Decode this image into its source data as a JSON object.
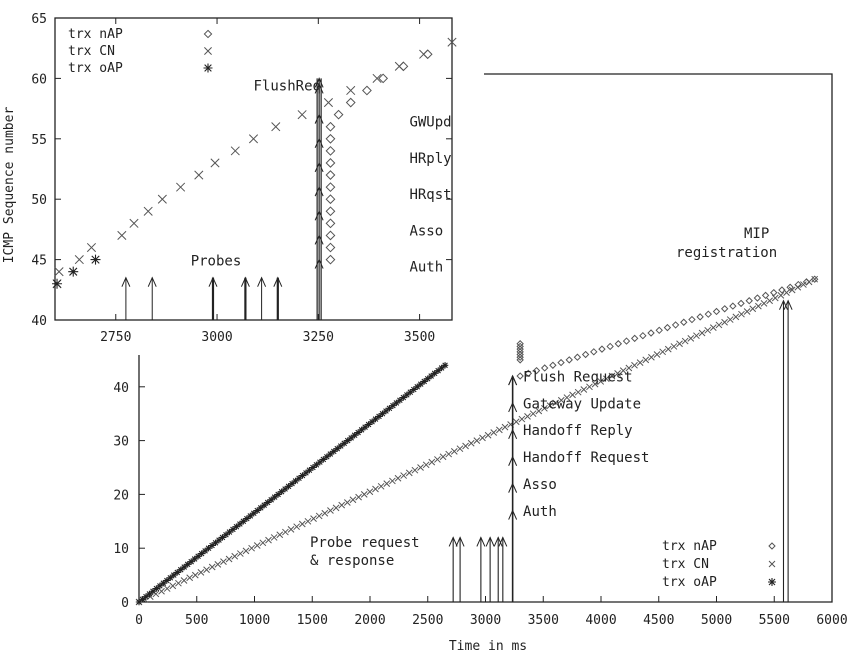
{
  "chart_data": [
    {
      "type": "scatter",
      "title": "",
      "xlabel": "Time in ms",
      "ylabel": "",
      "xlim": [
        0,
        6000
      ],
      "ylim": [
        0,
        47
      ],
      "xticks": [
        "0",
        "500",
        "1000",
        "1500",
        "2000",
        "2500",
        "3000",
        "3500",
        "4000",
        "4500",
        "5000",
        "5500",
        "6000"
      ],
      "yticks": [
        "0",
        "10",
        "20",
        "30",
        "40"
      ],
      "grid": false,
      "legend_position": "bottom-right",
      "legend": [
        {
          "label": "trx nAP",
          "marker": "◇"
        },
        {
          "label": "trx CN",
          "marker": "×"
        },
        {
          "label": "trx oAP",
          "marker": "✱"
        }
      ],
      "series": [
        {
          "name": "trx CN",
          "marker": "cross",
          "x_start": 0,
          "x_end": 5850,
          "y_start": 0,
          "y_end": 60
        },
        {
          "name": "trx oAP",
          "marker": "star",
          "x_start": 0,
          "x_end": 2650,
          "y_start": 0,
          "y_end": 44
        },
        {
          "name": "trx nAP",
          "marker": "diamond",
          "x_start": 3300,
          "x_end": 5850,
          "y_start": 42,
          "y_end": 60
        }
      ],
      "burst": {
        "x": 3300,
        "y_top": 48,
        "y_bottom": 45
      },
      "arrows": [
        {
          "x": 2720,
          "y0": 0,
          "y1": 12
        },
        {
          "x": 2780,
          "y0": 0,
          "y1": 12
        },
        {
          "x": 2960,
          "y0": 0,
          "y1": 12
        },
        {
          "x": 3040,
          "y0": 0,
          "y1": 12
        },
        {
          "x": 3110,
          "y0": 0,
          "y1": 12
        },
        {
          "x": 3150,
          "y0": 0,
          "y1": 12
        },
        {
          "x": 3235,
          "y0": 0,
          "y1": 42,
          "heads": [
            17,
            22,
            27,
            32,
            37,
            42
          ]
        },
        {
          "x": 5580,
          "y0": 0,
          "y1": 56
        },
        {
          "x": 5620,
          "y0": 0,
          "y1": 56
        }
      ],
      "annotations": [
        {
          "text": "Auth",
          "x": 3325,
          "y": 16
        },
        {
          "text": "Asso",
          "x": 3325,
          "y": 21
        },
        {
          "text": "Handoff Request",
          "x": 3325,
          "y": 26
        },
        {
          "text": "Handoff Reply",
          "x": 3325,
          "y": 31
        },
        {
          "text": "Gateway Update",
          "x": 3325,
          "y": 36
        },
        {
          "text": "Flush Request",
          "x": 3325,
          "y": 41
        },
        {
          "text": "Probe request",
          "x": 1500,
          "y": 9
        },
        {
          "text": "& response",
          "x": 1500,
          "y": 6
        },
        {
          "text": "MIP",
          "x": 5400,
          "y": 64
        },
        {
          "text": "registration",
          "x": 4760,
          "y": 61
        }
      ]
    },
    {
      "type": "scatter",
      "title": "",
      "xlabel": "",
      "ylabel": "ICMP Sequence number",
      "xlim": [
        2600,
        3580
      ],
      "ylim": [
        40,
        65
      ],
      "xticks": [
        "2750",
        "3000",
        "3250",
        "3500"
      ],
      "yticks": [
        "40",
        "45",
        "50",
        "55",
        "60",
        "65"
      ],
      "grid": false,
      "legend_position": "top-left",
      "legend": [
        {
          "label": "trx nAP",
          "marker": "◇"
        },
        {
          "label": "trx CN",
          "marker": "×"
        },
        {
          "label": "trx oAP",
          "marker": "✱"
        }
      ],
      "series": [
        {
          "name": "trx CN",
          "marker": "cross",
          "points": [
            [
              2605,
              43
            ],
            [
              2610,
              44
            ],
            [
              2660,
              45
            ],
            [
              2690,
              46
            ],
            [
              2765,
              47
            ],
            [
              2795,
              48
            ],
            [
              2830,
              49
            ],
            [
              2865,
              50
            ],
            [
              2910,
              51
            ],
            [
              2955,
              52
            ],
            [
              2995,
              53
            ],
            [
              3045,
              54
            ],
            [
              3090,
              55
            ],
            [
              3145,
              56
            ],
            [
              3210,
              57
            ],
            [
              3275,
              58
            ],
            [
              3330,
              59
            ],
            [
              3395,
              60
            ],
            [
              3450,
              61
            ],
            [
              3510,
              62
            ],
            [
              3580,
              63
            ]
          ]
        },
        {
          "name": "trx oAP",
          "marker": "star",
          "points": [
            [
              2605,
              43
            ],
            [
              2645,
              44
            ],
            [
              2700,
              45
            ]
          ]
        },
        {
          "name": "trx nAP",
          "marker": "diamond",
          "points": [
            [
              3280,
              45
            ],
            [
              3280,
              46
            ],
            [
              3280,
              47
            ],
            [
              3280,
              48
            ],
            [
              3280,
              49
            ],
            [
              3280,
              50
            ],
            [
              3280,
              51
            ],
            [
              3280,
              52
            ],
            [
              3280,
              53
            ],
            [
              3280,
              54
            ],
            [
              3280,
              55
            ],
            [
              3280,
              56
            ],
            [
              3300,
              57
            ],
            [
              3330,
              58
            ],
            [
              3370,
              59
            ],
            [
              3410,
              60
            ],
            [
              3460,
              61
            ],
            [
              3520,
              62
            ]
          ]
        }
      ],
      "arrows": [
        {
          "x": 2775,
          "y0": 40,
          "y1": 43.5,
          "weight": "thin"
        },
        {
          "x": 2840,
          "y0": 40,
          "y1": 43.5,
          "weight": "thin"
        },
        {
          "x": 2990,
          "y0": 40,
          "y1": 43.5,
          "weight": "bold"
        },
        {
          "x": 3070,
          "y0": 40,
          "y1": 43.5,
          "weight": "bold"
        },
        {
          "x": 3110,
          "y0": 40,
          "y1": 43.5,
          "weight": "thin"
        },
        {
          "x": 3150,
          "y0": 40,
          "y1": 43.5,
          "weight": "bold"
        },
        {
          "x": 3252,
          "y0": 40,
          "y1": 60,
          "weight": "bold",
          "heads": [
            45,
            47,
            49,
            51,
            53,
            55,
            57,
            59.5
          ]
        }
      ],
      "annotations": [
        {
          "text": "Probes",
          "x": 2935,
          "y": 44.5
        },
        {
          "text": "FlushReq",
          "x": 3090,
          "y": 59
        },
        {
          "text": "GWUpd",
          "x": 3475,
          "y": 56
        },
        {
          "text": "HRply",
          "x": 3475,
          "y": 53
        },
        {
          "text": "HRqst",
          "x": 3475,
          "y": 50
        },
        {
          "text": "Asso",
          "x": 3475,
          "y": 47
        },
        {
          "text": "Auth",
          "x": 3475,
          "y": 44
        }
      ]
    }
  ]
}
